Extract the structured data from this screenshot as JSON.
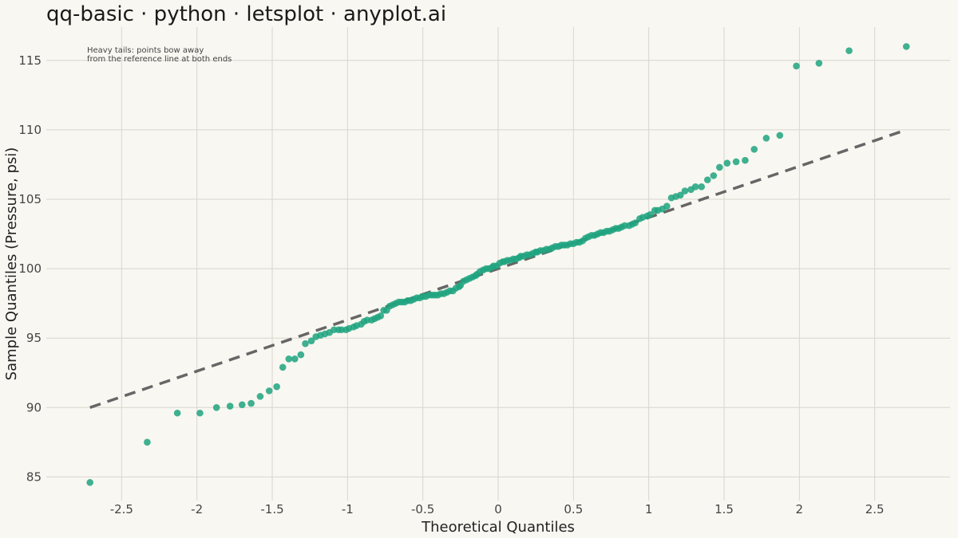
{
  "chart_data": {
    "type": "scatter",
    "title": "qq-basic · python · letsplot · anyplot.ai",
    "xlabel": "Theoretical Quantiles",
    "ylabel": "Sample Quantiles (Pressure, psi)",
    "annotation": [
      "Heavy tails: points bow away",
      "from the reference line at both ends"
    ],
    "xlim": [
      -3.0,
      3.0
    ],
    "ylim": [
      83.3,
      117.4
    ],
    "x_ticks": [
      "-2.5",
      "-2",
      "-1.5",
      "-1",
      "-0.5",
      "0",
      "0.5",
      "1",
      "1.5",
      "2",
      "2.5"
    ],
    "y_ticks": [
      "85",
      "90",
      "95",
      "100",
      "105",
      "110",
      "115"
    ],
    "grid": true,
    "legend": "none",
    "reference_line": {
      "x": [
        -2.71,
        2.71
      ],
      "y": [
        90.0,
        110.0
      ],
      "style": "dashed",
      "color": "#666666"
    },
    "point_color": "#1FA37F",
    "series": [
      {
        "points": [
          [
            -2.71,
            84.6
          ],
          [
            -2.33,
            87.5
          ],
          [
            -2.13,
            89.6
          ],
          [
            -1.98,
            89.6
          ],
          [
            -1.87,
            90.0
          ],
          [
            -1.78,
            90.1
          ],
          [
            -1.7,
            90.2
          ],
          [
            -1.64,
            90.3
          ],
          [
            -1.58,
            90.8
          ],
          [
            -1.52,
            91.2
          ],
          [
            -1.47,
            91.5
          ],
          [
            -1.43,
            92.9
          ],
          [
            -1.39,
            93.5
          ],
          [
            -1.35,
            93.5
          ],
          [
            -1.31,
            93.8
          ],
          [
            -1.28,
            94.6
          ],
          [
            -1.24,
            94.8
          ],
          [
            -1.21,
            95.1
          ],
          [
            -1.18,
            95.2
          ],
          [
            -1.15,
            95.3
          ],
          [
            -1.12,
            95.4
          ],
          [
            -1.09,
            95.6
          ],
          [
            -1.06,
            95.6
          ],
          [
            -1.04,
            95.6
          ],
          [
            -1.01,
            95.6
          ],
          [
            -0.99,
            95.7
          ],
          [
            -0.96,
            95.8
          ],
          [
            -0.94,
            95.9
          ],
          [
            -0.91,
            96.0
          ],
          [
            -0.89,
            96.2
          ],
          [
            -0.87,
            96.3
          ],
          [
            -0.84,
            96.3
          ],
          [
            -0.82,
            96.4
          ],
          [
            -0.8,
            96.5
          ],
          [
            -0.78,
            96.6
          ],
          [
            -0.76,
            97.0
          ],
          [
            -0.74,
            97.0
          ],
          [
            -0.72,
            97.3
          ],
          [
            -0.7,
            97.4
          ],
          [
            -0.68,
            97.5
          ],
          [
            -0.66,
            97.6
          ],
          [
            -0.64,
            97.6
          ],
          [
            -0.62,
            97.6
          ],
          [
            -0.6,
            97.7
          ],
          [
            -0.58,
            97.7
          ],
          [
            -0.56,
            97.8
          ],
          [
            -0.54,
            97.9
          ],
          [
            -0.52,
            97.9
          ],
          [
            -0.5,
            98.0
          ],
          [
            -0.48,
            98.0
          ],
          [
            -0.46,
            98.1
          ],
          [
            -0.44,
            98.1
          ],
          [
            -0.42,
            98.1
          ],
          [
            -0.4,
            98.1
          ],
          [
            -0.38,
            98.2
          ],
          [
            -0.36,
            98.2
          ],
          [
            -0.34,
            98.3
          ],
          [
            -0.32,
            98.4
          ],
          [
            -0.3,
            98.4
          ],
          [
            -0.28,
            98.6
          ],
          [
            -0.26,
            98.7
          ],
          [
            -0.25,
            98.8
          ],
          [
            -0.23,
            99.1
          ],
          [
            -0.21,
            99.2
          ],
          [
            -0.19,
            99.3
          ],
          [
            -0.17,
            99.4
          ],
          [
            -0.15,
            99.5
          ],
          [
            -0.14,
            99.6
          ],
          [
            -0.12,
            99.8
          ],
          [
            -0.1,
            99.9
          ],
          [
            -0.08,
            100.0
          ],
          [
            -0.06,
            100.0
          ],
          [
            -0.04,
            100.1
          ],
          [
            -0.03,
            100.2
          ],
          [
            -0.01,
            100.2
          ],
          [
            0.01,
            100.4
          ],
          [
            0.03,
            100.5
          ],
          [
            0.04,
            100.5
          ],
          [
            0.06,
            100.6
          ],
          [
            0.08,
            100.6
          ],
          [
            0.1,
            100.7
          ],
          [
            0.12,
            100.7
          ],
          [
            0.14,
            100.8
          ],
          [
            0.15,
            100.9
          ],
          [
            0.17,
            100.9
          ],
          [
            0.19,
            101.0
          ],
          [
            0.21,
            101.0
          ],
          [
            0.23,
            101.1
          ],
          [
            0.25,
            101.2
          ],
          [
            0.26,
            101.2
          ],
          [
            0.28,
            101.3
          ],
          [
            0.3,
            101.3
          ],
          [
            0.32,
            101.4
          ],
          [
            0.34,
            101.4
          ],
          [
            0.36,
            101.5
          ],
          [
            0.38,
            101.6
          ],
          [
            0.4,
            101.6
          ],
          [
            0.42,
            101.7
          ],
          [
            0.44,
            101.7
          ],
          [
            0.46,
            101.7
          ],
          [
            0.48,
            101.8
          ],
          [
            0.5,
            101.8
          ],
          [
            0.52,
            101.9
          ],
          [
            0.54,
            101.9
          ],
          [
            0.56,
            102.0
          ],
          [
            0.58,
            102.2
          ],
          [
            0.6,
            102.3
          ],
          [
            0.62,
            102.4
          ],
          [
            0.64,
            102.4
          ],
          [
            0.66,
            102.5
          ],
          [
            0.68,
            102.6
          ],
          [
            0.7,
            102.6
          ],
          [
            0.72,
            102.7
          ],
          [
            0.74,
            102.7
          ],
          [
            0.76,
            102.8
          ],
          [
            0.78,
            102.9
          ],
          [
            0.8,
            102.9
          ],
          [
            0.82,
            103.0
          ],
          [
            0.84,
            103.1
          ],
          [
            0.87,
            103.1
          ],
          [
            0.89,
            103.2
          ],
          [
            0.91,
            103.3
          ],
          [
            0.94,
            103.6
          ],
          [
            0.96,
            103.7
          ],
          [
            0.99,
            103.8
          ],
          [
            1.01,
            103.9
          ],
          [
            1.04,
            104.2
          ],
          [
            1.06,
            104.2
          ],
          [
            1.09,
            104.3
          ],
          [
            1.12,
            104.5
          ],
          [
            1.15,
            105.1
          ],
          [
            1.18,
            105.2
          ],
          [
            1.21,
            105.3
          ],
          [
            1.24,
            105.6
          ],
          [
            1.28,
            105.7
          ],
          [
            1.31,
            105.9
          ],
          [
            1.35,
            105.9
          ],
          [
            1.39,
            106.4
          ],
          [
            1.43,
            106.7
          ],
          [
            1.47,
            107.3
          ],
          [
            1.52,
            107.6
          ],
          [
            1.58,
            107.7
          ],
          [
            1.64,
            107.8
          ],
          [
            1.7,
            108.6
          ],
          [
            1.78,
            109.4
          ],
          [
            1.87,
            109.6
          ],
          [
            1.98,
            114.6
          ],
          [
            2.13,
            114.8
          ],
          [
            2.33,
            115.7
          ],
          [
            2.71,
            116.0
          ]
        ]
      }
    ]
  }
}
